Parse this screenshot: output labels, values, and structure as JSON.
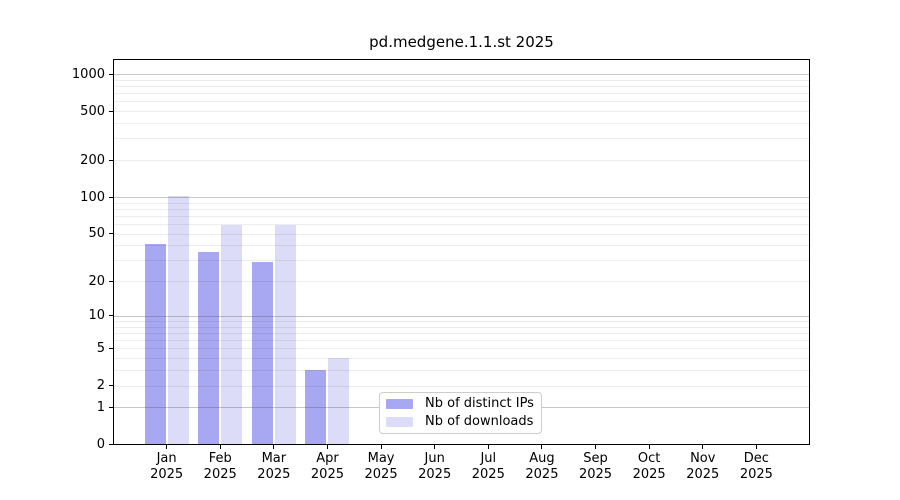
{
  "chart_data": {
    "type": "bar",
    "title": "pd.medgene.1.1.st 2025",
    "year": "2025",
    "categories": [
      "Jan",
      "Feb",
      "Mar",
      "Apr",
      "May",
      "Jun",
      "Jul",
      "Aug",
      "Sep",
      "Oct",
      "Nov",
      "Dec"
    ],
    "series": [
      {
        "name": "Nb of distinct IPs",
        "color": "#a7a7f2",
        "values": [
          41,
          35,
          29,
          3,
          0,
          0,
          0,
          0,
          0,
          0,
          0,
          0
        ]
      },
      {
        "name": "Nb of downloads",
        "color": "#dcdcf9",
        "values": [
          101,
          58,
          58,
          4,
          0,
          0,
          0,
          0,
          0,
          0,
          0,
          0
        ]
      }
    ],
    "yscale": "log1p",
    "yticks": [
      0,
      1,
      2,
      5,
      10,
      20,
      50,
      100,
      200,
      500,
      1000
    ],
    "ylim": [
      0,
      1305
    ],
    "xlabel": "",
    "ylabel": "",
    "grid": true,
    "grid_major_at": [
      1,
      10,
      100,
      1000
    ],
    "legend_position": "bottom-center"
  },
  "legend": {
    "items": [
      {
        "label": "Nb of distinct IPs",
        "color": "#a7a7f2"
      },
      {
        "label": "Nb of downloads",
        "color": "#dcdcf9"
      }
    ]
  },
  "colors": {
    "background": "#ffffff",
    "bar_distinct_ips": "#a7a7f2",
    "bar_downloads": "#dcdcf9",
    "axis": "#000000",
    "grid_major": "rgba(90,90,90,0.35)",
    "grid_minor": "rgba(0,0,0,0.07)",
    "legend_border": "#cccccc"
  }
}
